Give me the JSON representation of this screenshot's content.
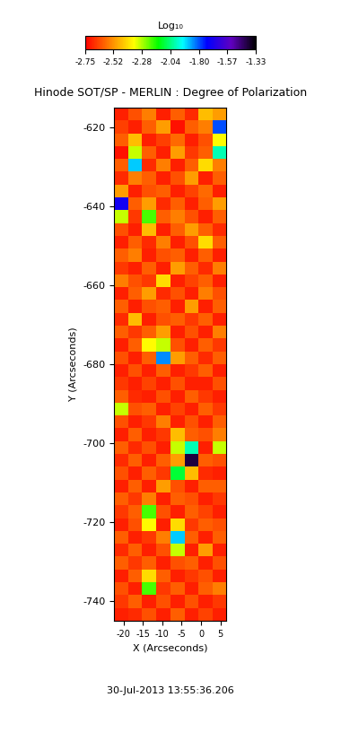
{
  "chart_data": {
    "type": "heatmap",
    "title": "Hinode SOT/SP - MERLIN : Degree of Polarization",
    "x_label": "X (Arcseconds)",
    "y_label": "Y (Arcseconds)",
    "annotation": "30-Jul-2013 13:55:36.206",
    "colorbar_label": "Log₁₀",
    "xlim": [
      -22.5,
      6.5
    ],
    "ylim": [
      -745,
      -615
    ],
    "xticks": [
      -20,
      -15,
      -10,
      -5,
      0,
      5
    ],
    "yticks": [
      -740,
      -720,
      -700,
      -680,
      -660,
      -640,
      -620
    ],
    "color_range": [
      -2.75,
      -1.33
    ],
    "color_ticks": [
      -2.75,
      -2.52,
      -2.28,
      -2.04,
      {
        "value": -1.8,
        "label": "-1.80"
      },
      -1.57,
      -1.33
    ],
    "cells": [
      [
        -2.7,
        -2.62,
        -2.55,
        -2.7,
        -2.6,
        -2.68,
        -2.45,
        -2.5
      ],
      [
        -2.65,
        -2.7,
        -2.6,
        -2.5,
        -2.72,
        -2.6,
        -2.55,
        -1.8
      ],
      [
        -2.6,
        -2.45,
        -2.7,
        -2.65,
        -2.58,
        -2.7,
        -2.62,
        -2.35
      ],
      [
        -2.72,
        -2.3,
        -2.6,
        -2.7,
        -2.5,
        -2.66,
        -2.6,
        -2.0
      ],
      [
        -2.6,
        -1.9,
        -2.68,
        -2.55,
        -2.7,
        -2.6,
        -2.4,
        -2.55
      ],
      [
        -2.68,
        -2.55,
        -2.6,
        -2.7,
        -2.62,
        -2.5,
        -2.7,
        -2.6
      ],
      [
        -2.5,
        -2.7,
        -2.62,
        -2.6,
        -2.7,
        -2.64,
        -2.58,
        -2.7
      ],
      [
        -1.7,
        -2.6,
        -2.5,
        -2.68,
        -2.6,
        -2.7,
        -2.6,
        -2.5
      ],
      [
        -2.3,
        -2.66,
        -2.2,
        -2.6,
        -2.55,
        -2.62,
        -2.7,
        -2.6
      ],
      [
        -2.62,
        -2.7,
        -2.45,
        -2.7,
        -2.6,
        -2.5,
        -2.6,
        -2.68
      ],
      [
        -2.7,
        -2.6,
        -2.68,
        -2.55,
        -2.7,
        -2.62,
        -2.4,
        -2.6
      ],
      [
        -2.6,
        -2.55,
        -2.7,
        -2.62,
        -2.6,
        -2.7,
        -2.6,
        -2.7
      ],
      [
        -2.66,
        -2.7,
        -2.6,
        -2.7,
        -2.5,
        -2.6,
        -2.68,
        -2.55
      ],
      [
        -2.55,
        -2.62,
        -2.66,
        -2.4,
        -2.7,
        -2.64,
        -2.6,
        -2.7
      ],
      [
        -2.7,
        -2.6,
        -2.5,
        -2.68,
        -2.62,
        -2.7,
        -2.55,
        -2.62
      ],
      [
        -2.6,
        -2.7,
        -2.62,
        -2.6,
        -2.7,
        -2.5,
        -2.7,
        -2.6
      ],
      [
        -2.68,
        -2.45,
        -2.7,
        -2.62,
        -2.6,
        -2.66,
        -2.6,
        -2.7
      ],
      [
        -2.6,
        -2.66,
        -2.6,
        -2.5,
        -2.7,
        -2.62,
        -2.7,
        -2.55
      ],
      [
        -2.7,
        -2.6,
        -2.35,
        -2.3,
        -2.62,
        -2.7,
        -2.6,
        -2.66
      ],
      [
        -2.62,
        -2.7,
        -2.6,
        -1.85,
        -2.5,
        -2.6,
        -2.68,
        -2.6
      ],
      [
        -2.7,
        -2.62,
        -2.7,
        -2.6,
        -2.7,
        -2.66,
        -2.6,
        -2.7
      ],
      [
        -2.66,
        -2.7,
        -2.64,
        -2.7,
        -2.62,
        -2.7,
        -2.7,
        -2.62
      ],
      [
        -2.6,
        -2.68,
        -2.7,
        -2.62,
        -2.7,
        -2.6,
        -2.66,
        -2.7
      ],
      [
        -2.3,
        -2.62,
        -2.6,
        -2.7,
        -2.64,
        -2.7,
        -2.6,
        -2.66
      ],
      [
        -2.62,
        -2.7,
        -2.66,
        -2.55,
        -2.7,
        -2.62,
        -2.7,
        -2.6
      ],
      [
        -2.7,
        -2.6,
        -2.7,
        -2.66,
        -2.45,
        -2.6,
        -2.62,
        -2.55
      ],
      [
        -2.6,
        -2.68,
        -2.62,
        -2.7,
        -2.3,
        -2.0,
        -2.7,
        -2.3
      ],
      [
        -2.68,
        -2.6,
        -2.7,
        -2.6,
        -2.5,
        -1.4,
        -2.6,
        -2.62
      ],
      [
        -2.62,
        -2.7,
        -2.6,
        -2.66,
        -2.1,
        -2.45,
        -2.68,
        -2.7
      ],
      [
        -2.7,
        -2.6,
        -2.7,
        -2.5,
        -2.62,
        -2.7,
        -2.6,
        -2.6
      ],
      [
        -2.6,
        -2.66,
        -2.55,
        -2.7,
        -2.6,
        -2.62,
        -2.7,
        -2.66
      ],
      [
        -2.66,
        -2.6,
        -2.2,
        -2.62,
        -2.7,
        -2.6,
        -2.64,
        -2.7
      ],
      [
        -2.7,
        -2.62,
        -2.35,
        -2.7,
        -2.4,
        -2.66,
        -2.6,
        -2.62
      ],
      [
        -2.6,
        -2.7,
        -2.66,
        -2.55,
        -1.9,
        -2.6,
        -2.7,
        -2.6
      ],
      [
        -2.68,
        -2.6,
        -2.7,
        -2.62,
        -2.3,
        -2.7,
        -2.5,
        -2.7
      ],
      [
        -2.6,
        -2.66,
        -2.6,
        -2.7,
        -2.62,
        -2.6,
        -2.7,
        -2.62
      ],
      [
        -2.7,
        -2.6,
        -2.4,
        -2.6,
        -2.7,
        -2.66,
        -2.62,
        -2.7
      ],
      [
        -2.62,
        -2.7,
        -2.2,
        -2.66,
        -2.6,
        -2.7,
        -2.6,
        -2.55
      ],
      [
        -2.66,
        -2.6,
        -2.7,
        -2.62,
        -2.7,
        -2.62,
        -2.7,
        -2.66
      ],
      [
        -2.7,
        -2.68,
        -2.62,
        -2.7,
        -2.6,
        -2.7,
        -2.64,
        -2.7
      ]
    ]
  }
}
